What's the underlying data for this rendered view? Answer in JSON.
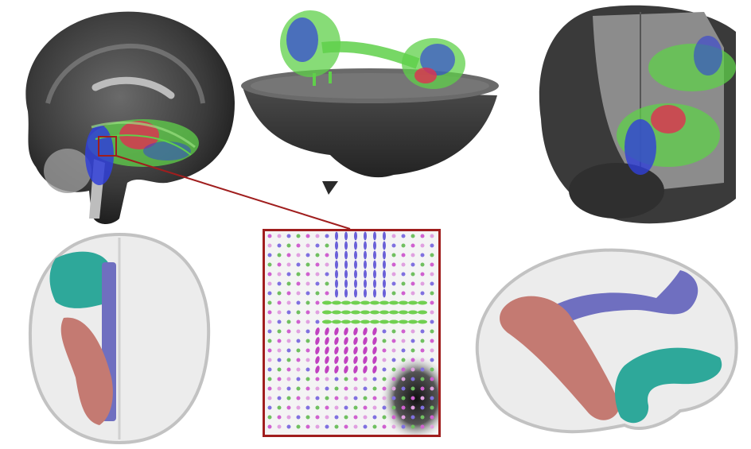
{
  "figure": {
    "panels": [
      {
        "name": "sagittal-brain-tractography"
      },
      {
        "name": "axial-cut-brain-tractography"
      },
      {
        "name": "coronal-cut-brain-tractography"
      },
      {
        "name": "axial-glass-brain-tracts"
      },
      {
        "name": "odf-glyph-zoom"
      },
      {
        "name": "lateral-glass-brain-tracts"
      }
    ],
    "colors": {
      "frame_red": "#a01e1e",
      "tract_teal": "#2ea89a",
      "tract_blue": "#6f6fc0",
      "tract_salmon": "#c47a72",
      "rgb_red": "#e03050",
      "rgb_green": "#5fd04a",
      "rgb_blue": "#3040d8",
      "brain_gray": "#555555"
    }
  }
}
